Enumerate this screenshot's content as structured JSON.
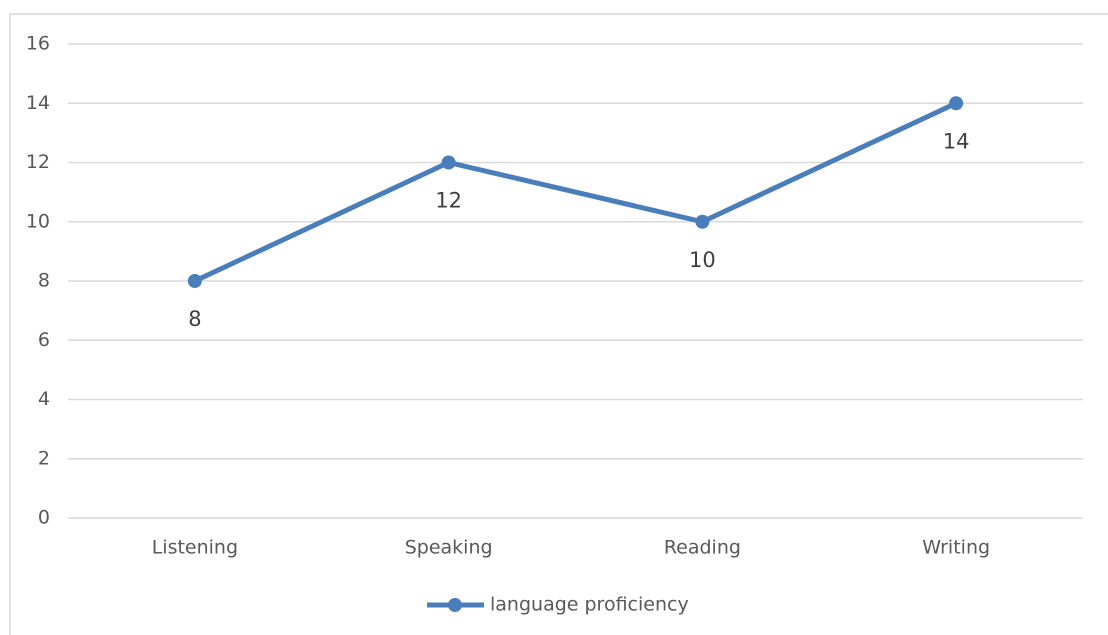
{
  "chart_data": {
    "type": "line",
    "categories": [
      "Listening",
      "Speaking",
      "Reading",
      "Writing"
    ],
    "series": [
      {
        "name": "language proficiency",
        "color": "#4a7ebb",
        "values": [
          8,
          12,
          10,
          14
        ]
      }
    ],
    "ylim": [
      0,
      16
    ],
    "yticks": [
      0,
      2,
      4,
      6,
      8,
      10,
      12,
      14,
      16
    ],
    "grid": true,
    "legend": "bottom",
    "data_labels": true
  }
}
